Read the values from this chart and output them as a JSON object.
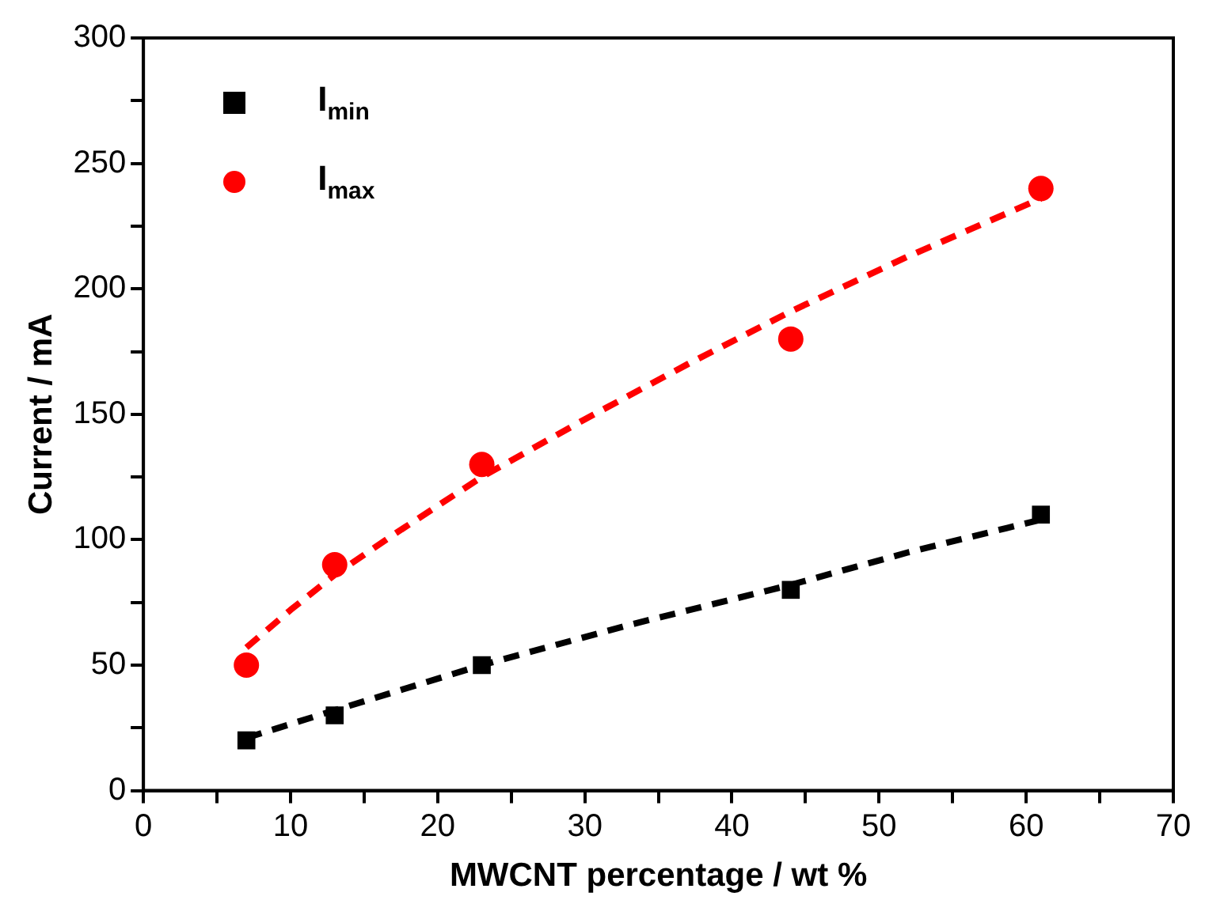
{
  "chart_data": {
    "type": "scatter",
    "xlabel": "MWCNT percentage / wt %",
    "ylabel": "Current / mA",
    "xlim": [
      0,
      70
    ],
    "xticks": [
      0,
      {
        "value": 5,
        "label": null
      },
      10,
      {
        "value": 15,
        "label": null
      },
      20,
      {
        "value": 25,
        "label": null
      },
      30,
      {
        "value": 35,
        "label": null
      },
      40,
      {
        "value": 45,
        "label": null
      },
      50,
      {
        "value": 55,
        "label": null
      },
      60,
      {
        "value": 65,
        "label": null
      },
      70
    ],
    "ylim": [
      0,
      300
    ],
    "yticks": [
      0,
      {
        "value": 25,
        "label": null
      },
      50,
      {
        "value": 75,
        "label": null
      },
      100,
      {
        "value": 125,
        "label": null
      },
      150,
      {
        "value": 175,
        "label": null
      },
      200,
      {
        "value": 225,
        "label": null
      },
      250,
      {
        "value": 275,
        "label": null
      },
      300
    ],
    "grid": false,
    "legend": "top left",
    "series": [
      {
        "name": "I$_{min}$",
        "color": "#000000",
        "marker": "square",
        "x": [
          7,
          13,
          23,
          44,
          61
        ],
        "values": [
          20,
          30,
          50,
          80,
          110
        ]
      },
      {
        "name": "I$_{max}$",
        "color": "#ff0000",
        "marker": "circle",
        "x": [
          7,
          13,
          23,
          44,
          61
        ],
        "values": [
          50,
          90,
          130,
          180,
          240
        ]
      },
      {
        "type": "line",
        "color": "#000000",
        "marker": "none",
        "line_style": "dashed",
        "x": [
          7,
          13,
          23,
          33,
          44,
          52,
          61
        ],
        "values": [
          21,
          32,
          50,
          66,
          82,
          95,
          108
        ]
      },
      {
        "type": "line",
        "color": "#ff0000",
        "marker": "none",
        "line_style": "dashed",
        "x": [
          7,
          10,
          13,
          17,
          23,
          30,
          37,
          44,
          52,
          61
        ],
        "values": [
          57,
          72,
          86,
          102,
          125,
          148,
          170,
          191,
          213,
          236
        ]
      }
    ]
  }
}
